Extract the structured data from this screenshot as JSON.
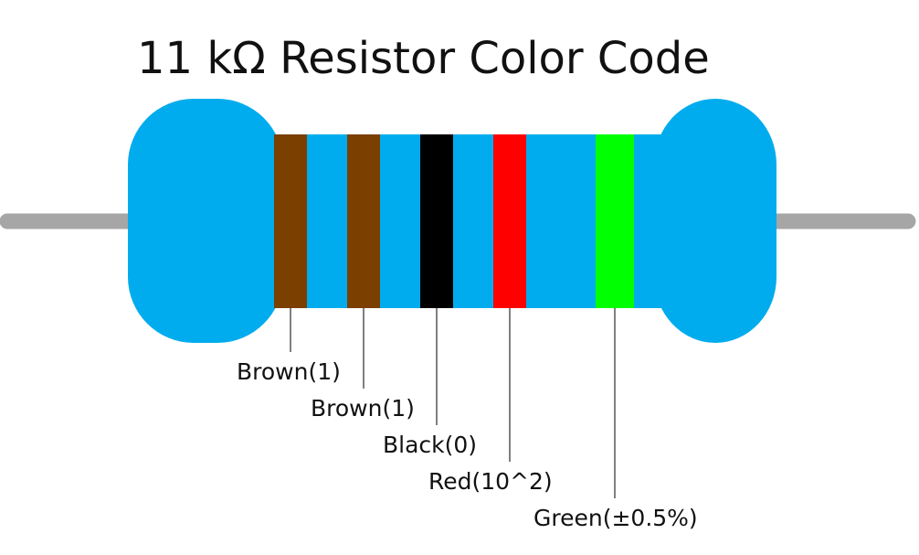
{
  "title": "11 kΩ Resistor Color Code",
  "bands": [
    {
      "label": "Brown(1)",
      "color": "#7b3f00"
    },
    {
      "label": "Brown(1)",
      "color": "#7b3f00"
    },
    {
      "label": "Black(0)",
      "color": "#000000"
    },
    {
      "label": "Red(10^2)",
      "color": "#ff0000"
    },
    {
      "label": "Green(±0.5%)",
      "color": "#00ff00"
    }
  ]
}
